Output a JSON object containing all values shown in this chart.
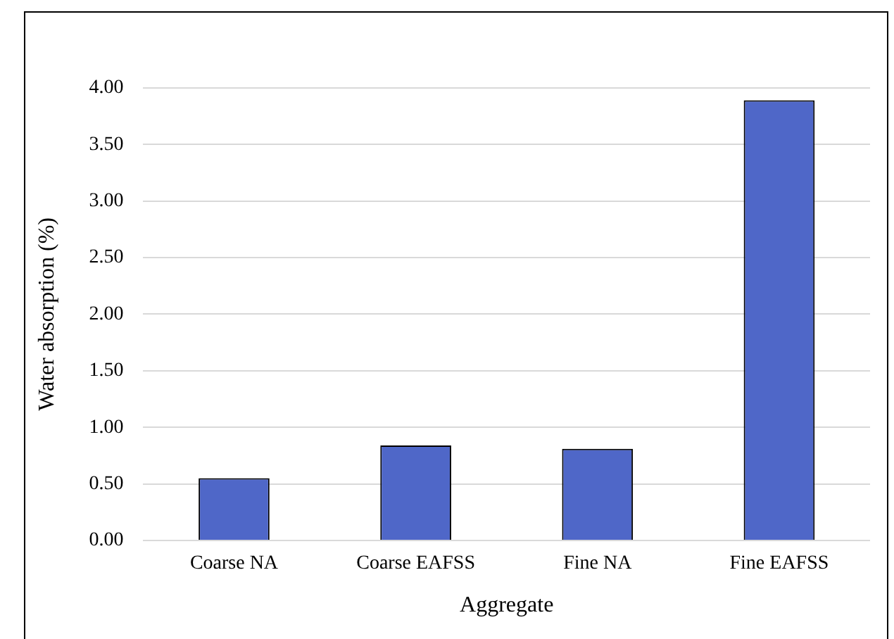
{
  "chart_data": {
    "type": "bar",
    "xlabel": "Aggregate",
    "ylabel": "Water absorption (%)",
    "categories": [
      "Coarse NA",
      "Coarse EAFSS",
      "Fine NA",
      "Fine EAFSS"
    ],
    "values": [
      0.55,
      0.84,
      0.81,
      3.89
    ],
    "color": "#4f67c8",
    "ylim": [
      0,
      4
    ],
    "yticks": [
      {
        "value": 0,
        "label": "0.00"
      },
      {
        "value": 0.5,
        "label": "0.50"
      },
      {
        "value": 1,
        "label": "1.00"
      },
      {
        "value": 1.5,
        "label": "1.50"
      },
      {
        "value": 2,
        "label": "2.00"
      },
      {
        "value": 2.5,
        "label": "2.50"
      },
      {
        "value": 3,
        "label": "3.00"
      },
      {
        "value": 3.5,
        "label": "3.50"
      },
      {
        "value": 4,
        "label": "4.00"
      }
    ],
    "grid": "y",
    "legend": false
  }
}
